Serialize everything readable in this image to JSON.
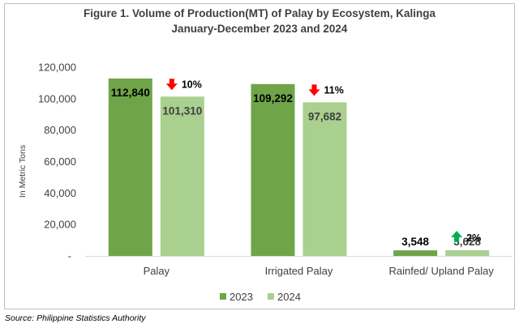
{
  "chart_data": {
    "type": "bar",
    "title": "Figure 1. Volume of Production(MT) of Palay by Ecosystem, Kalinga",
    "subtitle": "January-December 2023 and 2024",
    "ylabel": "In Metric Tons",
    "xlabel": "",
    "ylim": [
      0,
      120000
    ],
    "yticks": [
      "-",
      "20,000",
      "40,000",
      "60,000",
      "80,000",
      "100,000",
      "120,000"
    ],
    "categories": [
      "Palay",
      "Irrigated Palay",
      "Rainfed/ Upland Palay"
    ],
    "series": [
      {
        "name": "2023",
        "values": [
          112840,
          109292,
          3548
        ],
        "labels": [
          "112,840",
          "109,292",
          "3,548"
        ],
        "color": "#6fa548"
      },
      {
        "name": "2024",
        "values": [
          101310,
          97682,
          3628
        ],
        "labels": [
          "101,310",
          "97,682",
          "3,628"
        ],
        "color": "#a9d08e"
      }
    ],
    "annotations": [
      {
        "category": "Palay",
        "text": "10%",
        "direction": "down",
        "color": "#ff0000"
      },
      {
        "category": "Irrigated Palay",
        "text": "11%",
        "direction": "down",
        "color": "#ff0000"
      },
      {
        "category": "Rainfed/ Upland Palay",
        "text": "2%",
        "direction": "up",
        "color": "#00b050"
      }
    ],
    "legend": "bottom",
    "grid": false
  },
  "source": "Source: Philippine Statistics Authority"
}
